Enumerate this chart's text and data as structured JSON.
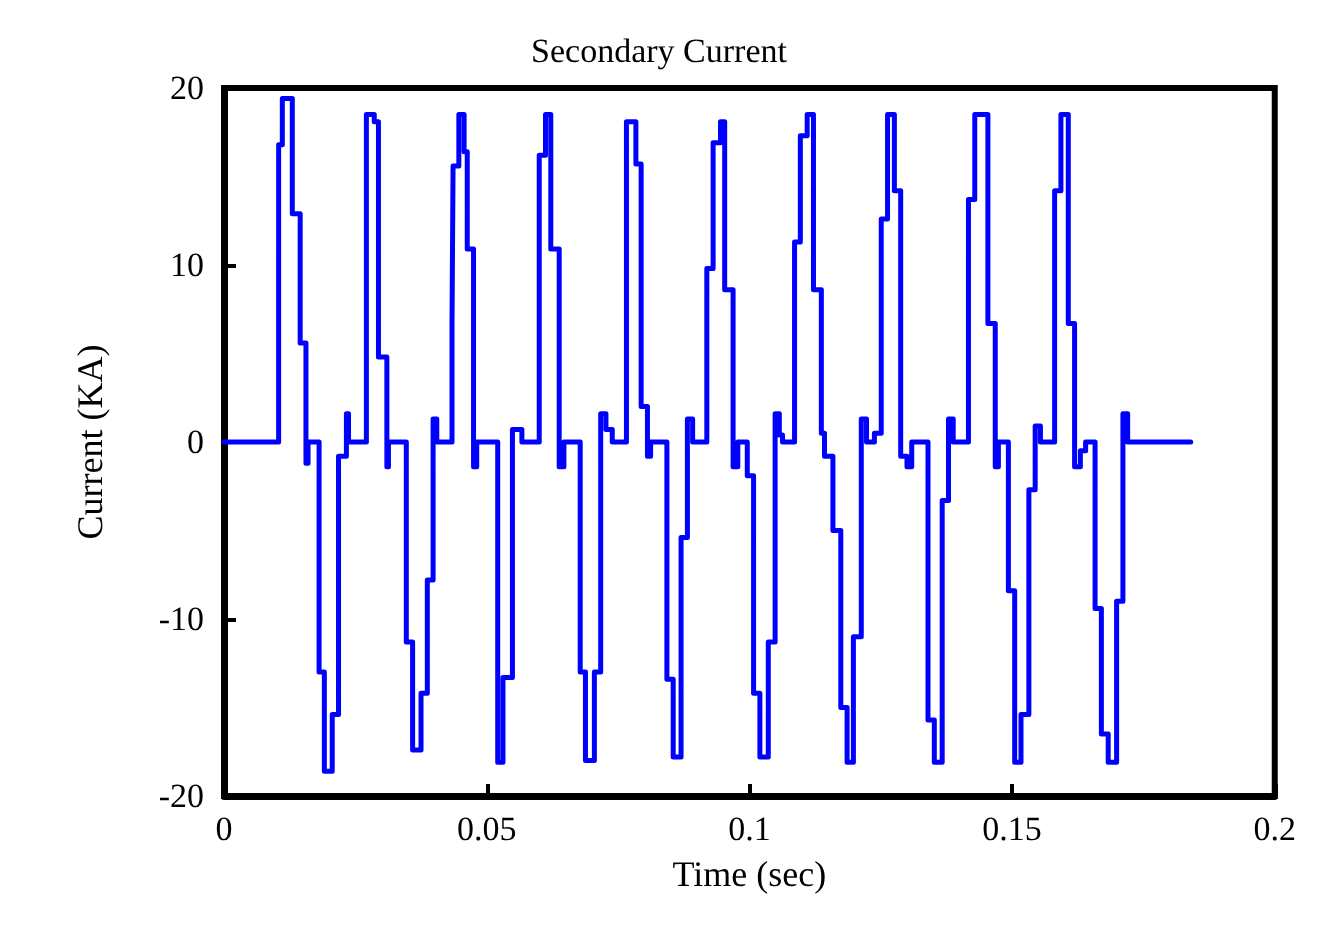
{
  "chart_data": {
    "type": "step",
    "title": "Secondary Current",
    "xlabel": "Time (sec)",
    "ylabel": "Current (KA)",
    "xlim": [
      0,
      0.2
    ],
    "xticks": [
      0,
      0.05,
      0.1,
      0.15,
      0.2
    ],
    "ylim": [
      -20,
      20
    ],
    "yticks": [
      -20,
      -10,
      0,
      10,
      20
    ],
    "grid": false,
    "marker": "none",
    "line_style": "solid",
    "series": [
      {
        "color": "#0000ff",
        "x": [
          0,
          0.0104,
          0.0111,
          0.013,
          0.0145,
          0.0156,
          0.016,
          0.0181,
          0.0191,
          0.0206,
          0.0218,
          0.0233,
          0.0237,
          0.0271,
          0.0286,
          0.0294,
          0.031,
          0.0313,
          0.0347,
          0.0359,
          0.0375,
          0.0387,
          0.0398,
          0.0405,
          0.0434,
          0.0436,
          0.0447,
          0.0457,
          0.0463,
          0.0475,
          0.0481,
          0.0521,
          0.0531,
          0.0549,
          0.0567,
          0.06,
          0.0612,
          0.0622,
          0.0638,
          0.0647,
          0.0678,
          0.0688,
          0.0705,
          0.0717,
          0.0727,
          0.0739,
          0.0766,
          0.0784,
          0.0794,
          0.0806,
          0.0812,
          0.0843,
          0.0855,
          0.087,
          0.0882,
          0.0892,
          0.0919,
          0.0931,
          0.0945,
          0.0953,
          0.0969,
          0.0978,
          0.0996,
          0.1008,
          0.102,
          0.1036,
          0.1049,
          0.1057,
          0.1063,
          0.1086,
          0.1097,
          0.111,
          0.1122,
          0.1137,
          0.1143,
          0.1159,
          0.1174,
          0.1186,
          0.1198,
          0.1213,
          0.1223,
          0.1238,
          0.1251,
          0.1263,
          0.1276,
          0.1288,
          0.13,
          0.1309,
          0.134,
          0.1352,
          0.1367,
          0.1379,
          0.1388,
          0.1417,
          0.1429,
          0.1454,
          0.1468,
          0.1474,
          0.1493,
          0.1505,
          0.1517,
          0.1532,
          0.1544,
          0.1554,
          0.1581,
          0.1593,
          0.1607,
          0.1619,
          0.163,
          0.164,
          0.1658,
          0.167,
          0.1683,
          0.1699,
          0.1711,
          0.172,
          0.184
        ],
        "values": [
          0,
          16.8,
          19.4,
          12.9,
          5.6,
          -1.2,
          0,
          -13.0,
          -18.6,
          -15.4,
          -0.8,
          1.6,
          0,
          18.5,
          18.1,
          4.8,
          -1.4,
          0,
          -11.3,
          -17.4,
          -14.2,
          -7.8,
          1.3,
          0,
          6.7,
          15.6,
          18.5,
          16.4,
          10.9,
          -1.4,
          0,
          -18.1,
          -13.3,
          0.7,
          0,
          16.2,
          18.5,
          10.9,
          -1.4,
          0,
          -13.0,
          -18.0,
          -13.0,
          1.6,
          0.7,
          0,
          18.1,
          15.7,
          2.0,
          -0.8,
          0,
          -13.4,
          -17.8,
          -5.4,
          1.3,
          0,
          9.8,
          16.9,
          18.1,
          8.6,
          -1.4,
          0,
          -1.9,
          -14.2,
          -17.8,
          -11.3,
          1.6,
          0.4,
          0,
          11.3,
          17.3,
          18.5,
          8.6,
          0.5,
          -0.8,
          -5.0,
          -15.0,
          -18.1,
          -11.0,
          1.3,
          0,
          0.5,
          12.6,
          18.5,
          14.2,
          -0.8,
          -1.4,
          0,
          -15.7,
          -18.1,
          -3.3,
          1.3,
          0,
          13.7,
          18.5,
          6.7,
          -1.4,
          0,
          -8.4,
          -18.1,
          -15.4,
          -2.7,
          0.9,
          0,
          14.2,
          18.5,
          6.7,
          -1.4,
          -0.5,
          0,
          -9.4,
          -16.5,
          -18.1,
          -9.0,
          1.6,
          0,
          0
        ]
      }
    ]
  }
}
